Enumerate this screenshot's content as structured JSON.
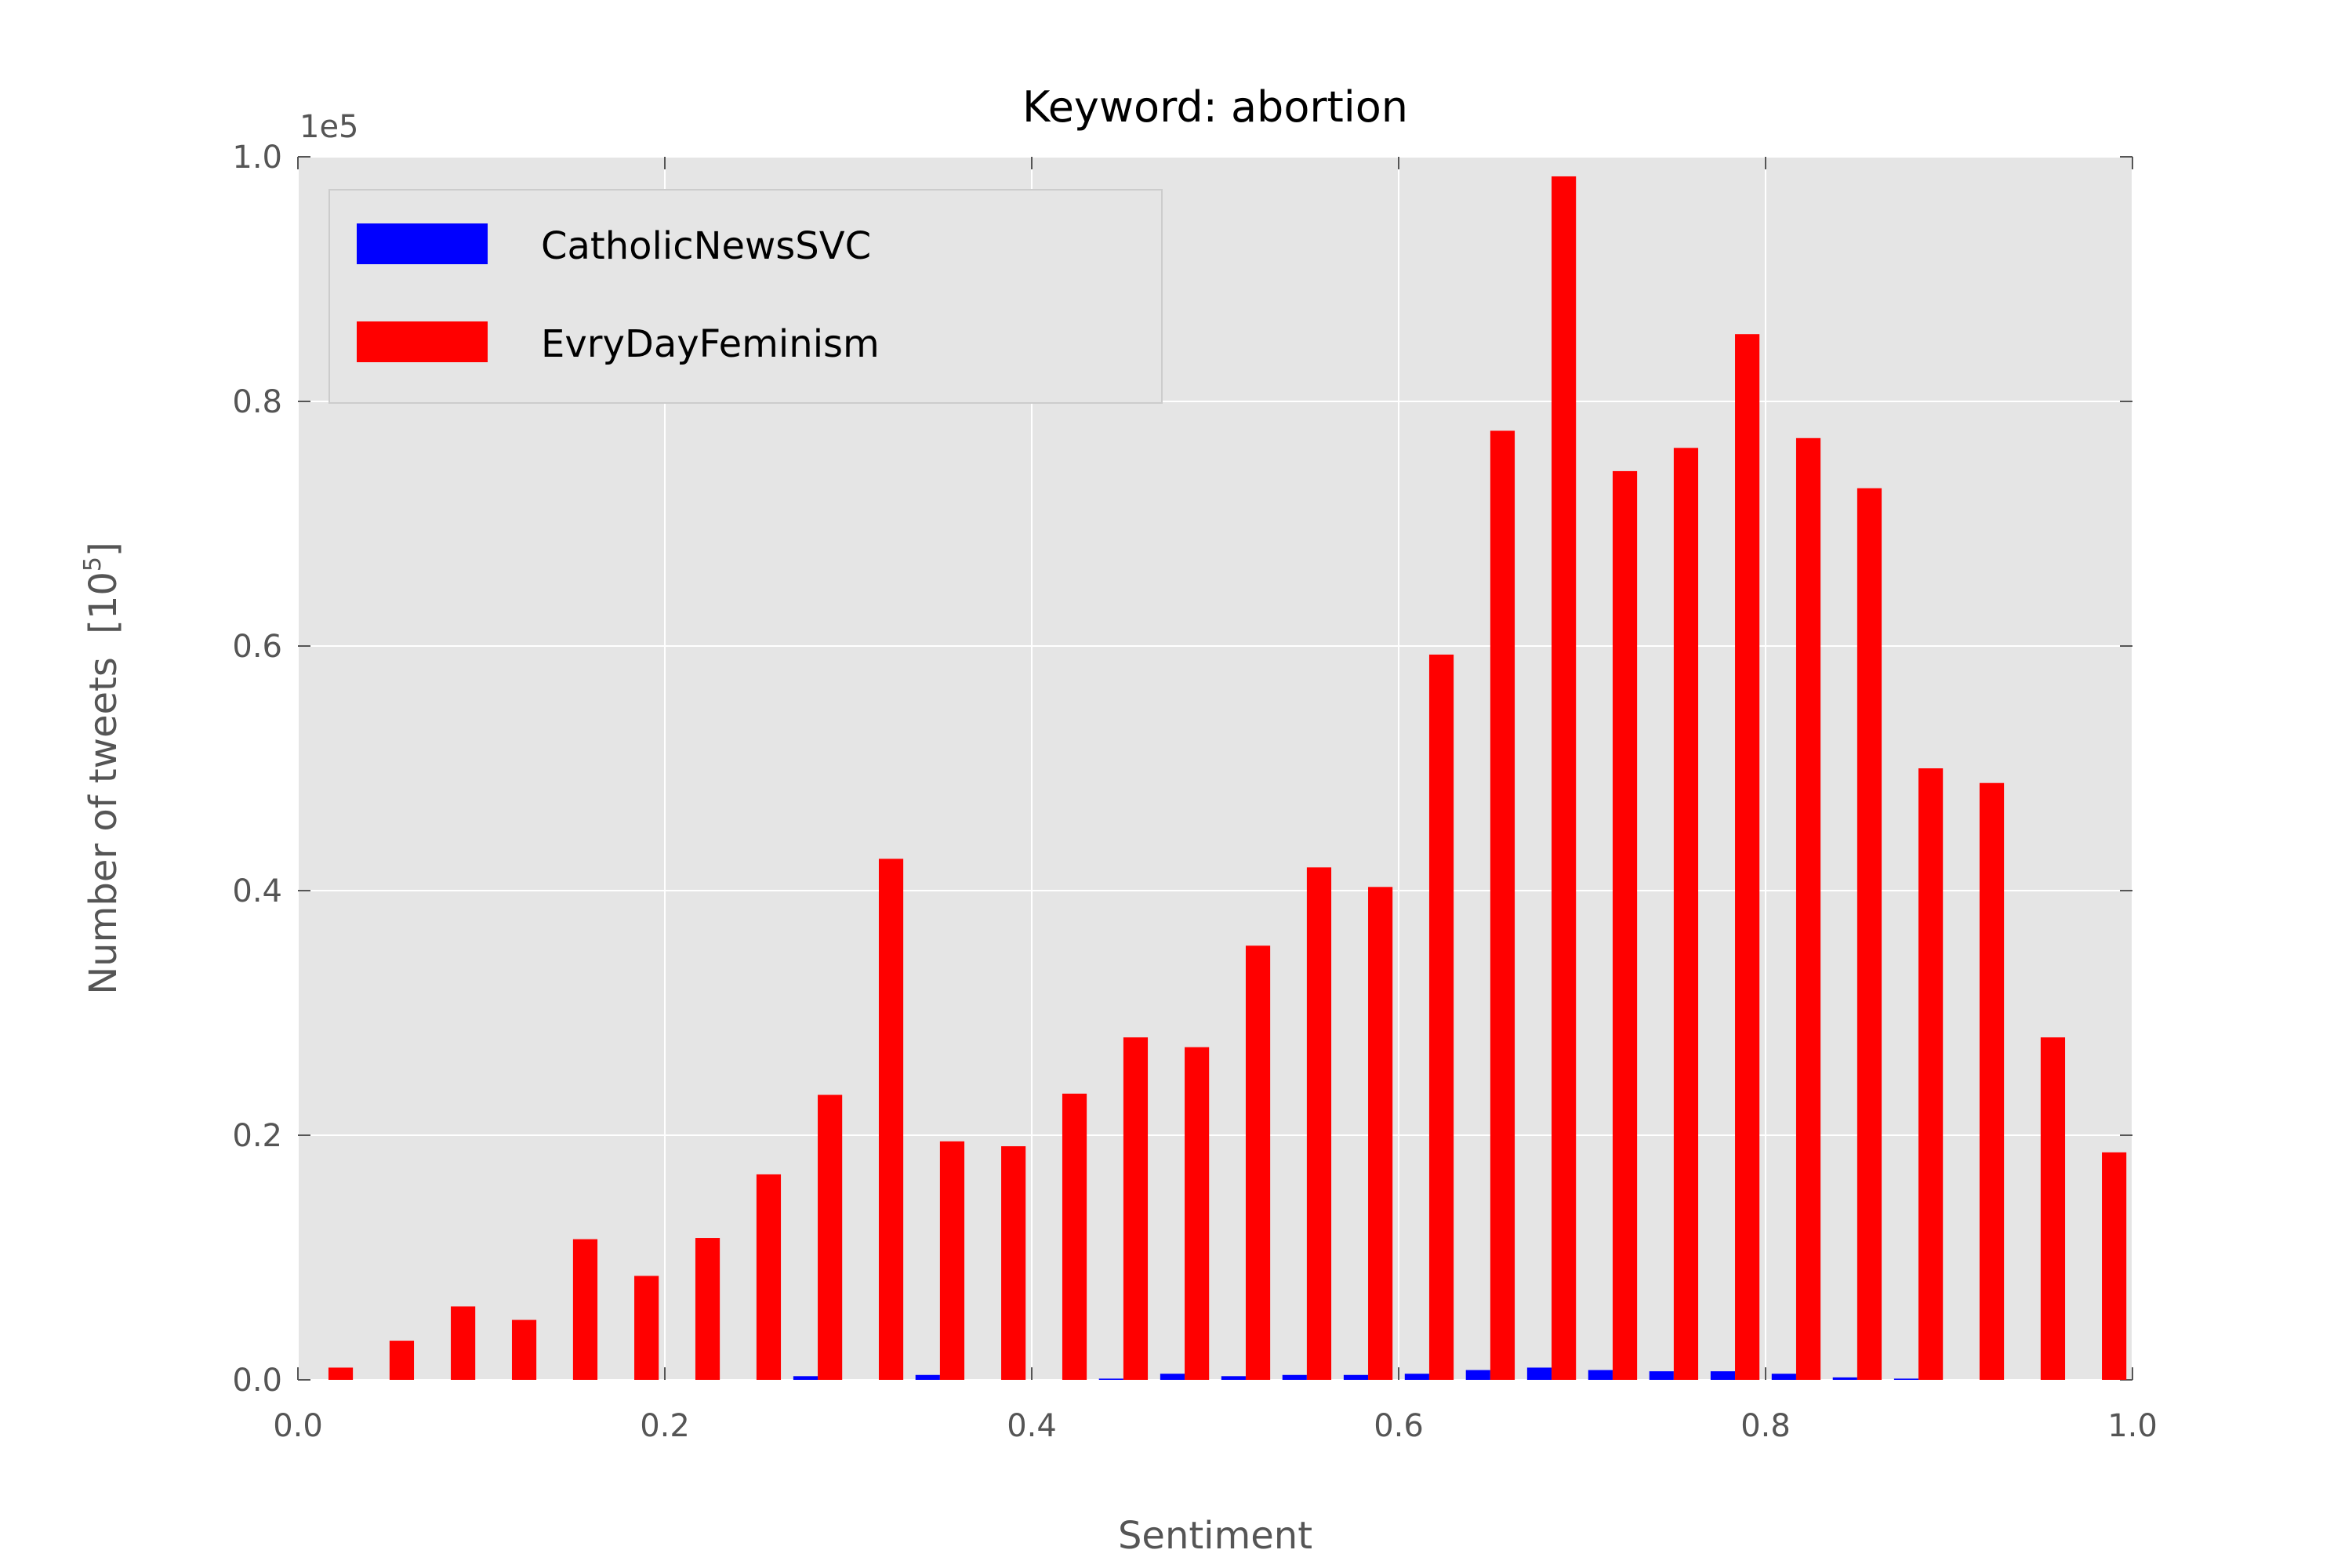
{
  "chart_data": {
    "type": "bar",
    "title": "Keyword: abortion",
    "xlabel": "Sentiment",
    "ylabel": "Number of tweets",
    "ylabel_unit": "[10",
    "ylabel_exponent": "5",
    "ylabel_unit_close": "]",
    "y_offset_label": "1e5",
    "xlim": [
      0.0,
      1.0
    ],
    "ylim": [
      0.0,
      1.0
    ],
    "xticks": [
      "0.0",
      "0.2",
      "0.4",
      "0.6",
      "0.8",
      "1.0"
    ],
    "yticks": [
      "0.0",
      "0.2",
      "0.4",
      "0.6",
      "0.8",
      "1.0"
    ],
    "grid": true,
    "legend_position": "top-left",
    "bin_width": 0.0333,
    "bin_starts": [
      0.0,
      0.0333,
      0.0667,
      0.1,
      0.1333,
      0.1667,
      0.2,
      0.2333,
      0.2667,
      0.3,
      0.3333,
      0.3667,
      0.4,
      0.4333,
      0.4667,
      0.5,
      0.5333,
      0.5667,
      0.6,
      0.6333,
      0.6667,
      0.7,
      0.7333,
      0.7667,
      0.8,
      0.8333,
      0.8667,
      0.9,
      0.9333,
      0.9667
    ],
    "series": [
      {
        "name": "CatholicNewsSVC",
        "color": "#0000ff",
        "values": [
          0.0,
          0.0,
          0.0,
          0.0,
          0.0,
          0.0,
          0.0,
          0.0,
          0.003,
          0.0,
          0.004,
          0.0,
          0.0,
          0.001,
          0.005,
          0.003,
          0.004,
          0.004,
          0.005,
          0.008,
          0.01,
          0.008,
          0.007,
          0.007,
          0.005,
          0.002,
          0.001,
          0.0,
          0.0,
          0.0
        ]
      },
      {
        "name": "EvryDayFeminism",
        "color": "#ff0000",
        "values": [
          0.01,
          0.032,
          0.06,
          0.049,
          0.115,
          0.085,
          0.116,
          0.168,
          0.233,
          0.426,
          0.195,
          0.191,
          0.234,
          0.28,
          0.272,
          0.355,
          0.419,
          0.403,
          0.593,
          0.776,
          0.984,
          0.743,
          0.762,
          0.855,
          0.77,
          0.729,
          0.5,
          0.488,
          0.28,
          0.186
        ]
      }
    ]
  },
  "style": {
    "axes_background": "#e5e5e5",
    "grid_color": "#ffffff",
    "tick_color": "#555555"
  }
}
